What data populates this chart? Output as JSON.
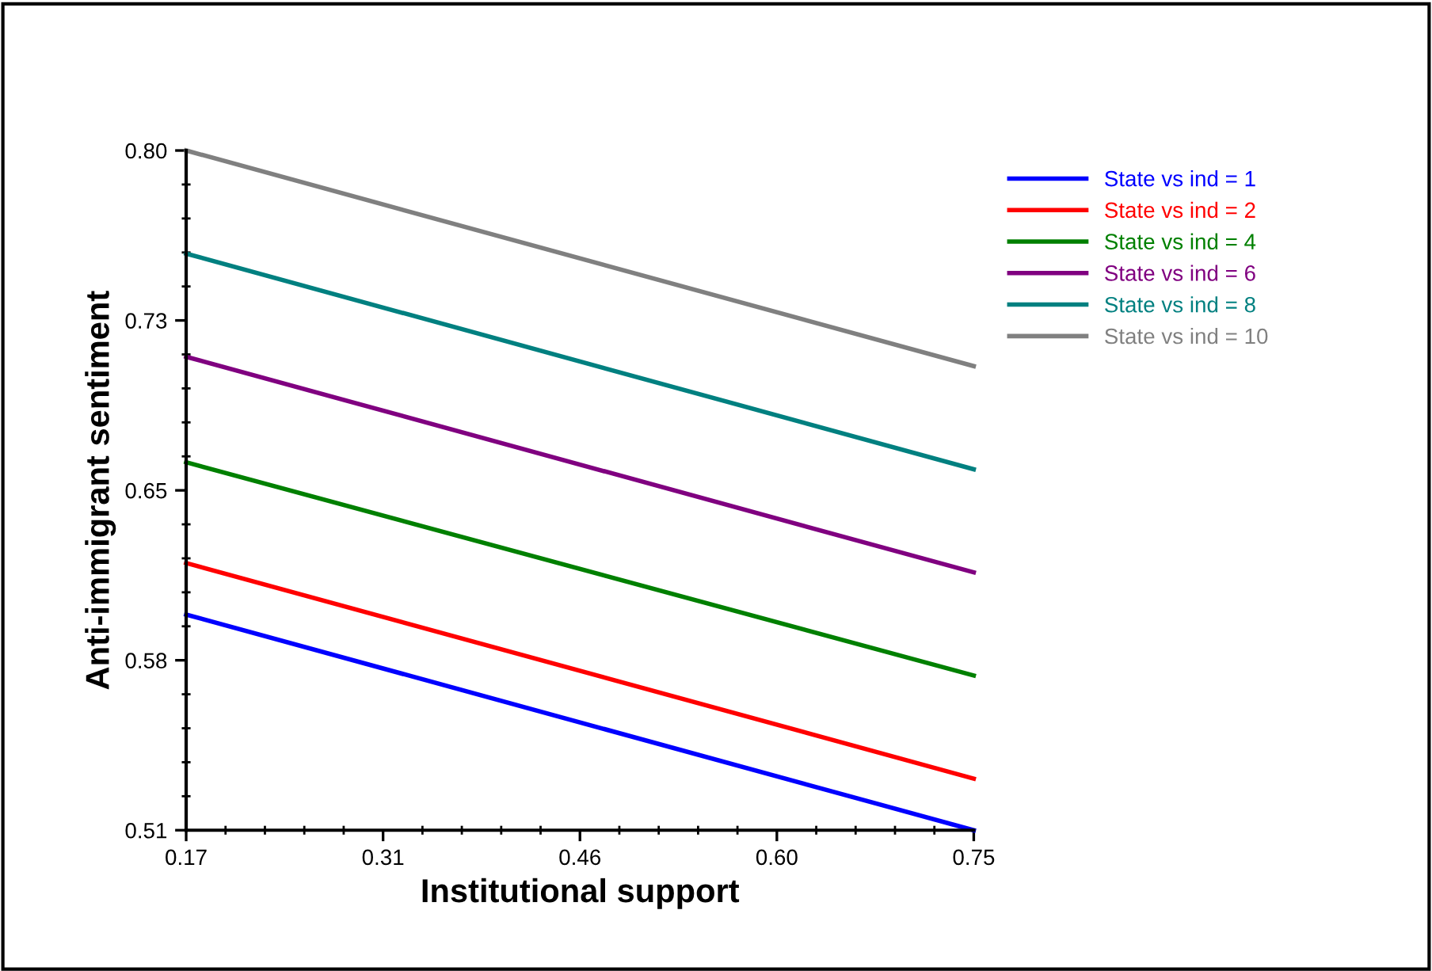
{
  "chart_data": {
    "type": "line",
    "xlabel": "Institutional support",
    "ylabel": "Anti-immigrant sentiment",
    "x": [
      0.17,
      0.75
    ],
    "series": [
      {
        "name": "State vs ind = 1",
        "color": "#0000ff",
        "values": [
          0.602,
          0.51
        ]
      },
      {
        "name": "State vs ind = 2",
        "color": "#ff0000",
        "values": [
          0.624,
          0.532
        ]
      },
      {
        "name": "State vs ind = 4",
        "color": "#008000",
        "values": [
          0.667,
          0.576
        ]
      },
      {
        "name": "State vs ind = 6",
        "color": "#800080",
        "values": [
          0.712,
          0.62
        ]
      },
      {
        "name": "State vs ind = 8",
        "color": "#008080",
        "values": [
          0.756,
          0.664
        ]
      },
      {
        "name": "State vs ind = 10",
        "color": "#808080",
        "values": [
          0.8,
          0.708
        ]
      }
    ],
    "xlim": [
      0.17,
      0.75
    ],
    "ylim": [
      0.51,
      0.8
    ],
    "xticks": [
      0.17,
      {
        "value": 0.315,
        "label": "0.31"
      },
      0.46,
      {
        "value": 0.605,
        "label": "0.60"
      },
      0.75
    ],
    "yticks": [
      0.51,
      {
        "value": 0.5825,
        "label": "0.58"
      },
      {
        "value": 0.655,
        "label": "0.65"
      },
      {
        "value": 0.7275,
        "label": "0.73"
      },
      {
        "value": 0.8,
        "label": "0.80"
      }
    ],
    "grid": false,
    "legend": "top right",
    "marker": "none",
    "line_style": "solid"
  }
}
